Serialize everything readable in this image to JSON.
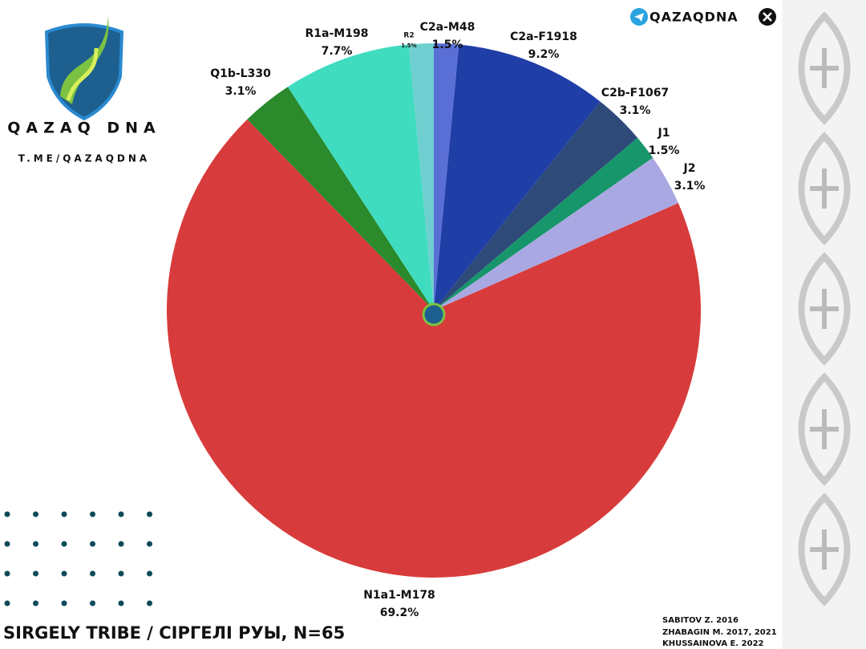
{
  "brand": {
    "logo_text": "QAZAQ DNA",
    "link": "T.ME/QAZAQDNA",
    "channel": "QAZAQDNA"
  },
  "sources": [
    "SABITOV Z. 2016",
    "ZHABAGIN M. 2017, 2021",
    "KHUSSAINOVA E. 2022"
  ],
  "chart_data": {
    "type": "pie",
    "title": "SIRGELY TRIBE / СІРГЕЛІ РУЫ, N=65",
    "categories": [
      "C2a-M48",
      "C2a-F1918",
      "C2b-F1067",
      "J1",
      "J2",
      "N1a1-M178",
      "Q1b-L330",
      "R1a-M198",
      "R2"
    ],
    "values": [
      1.5,
      9.2,
      3.1,
      1.5,
      3.1,
      69.2,
      3.1,
      7.7,
      1.5
    ],
    "value_labels": [
      "1.5%",
      "9.2%",
      "3.1%",
      "1.5%",
      "3.1%",
      "69.2%",
      "3.1%",
      "7.7%",
      "1.5%"
    ],
    "colors": [
      "#5a6fd6",
      "#1f3ea6",
      "#2e4a78",
      "#16966a",
      "#aaa8e2",
      "#d83b3b",
      "#2a8a2c",
      "#40dcc0",
      "#6fcfd0"
    ]
  }
}
